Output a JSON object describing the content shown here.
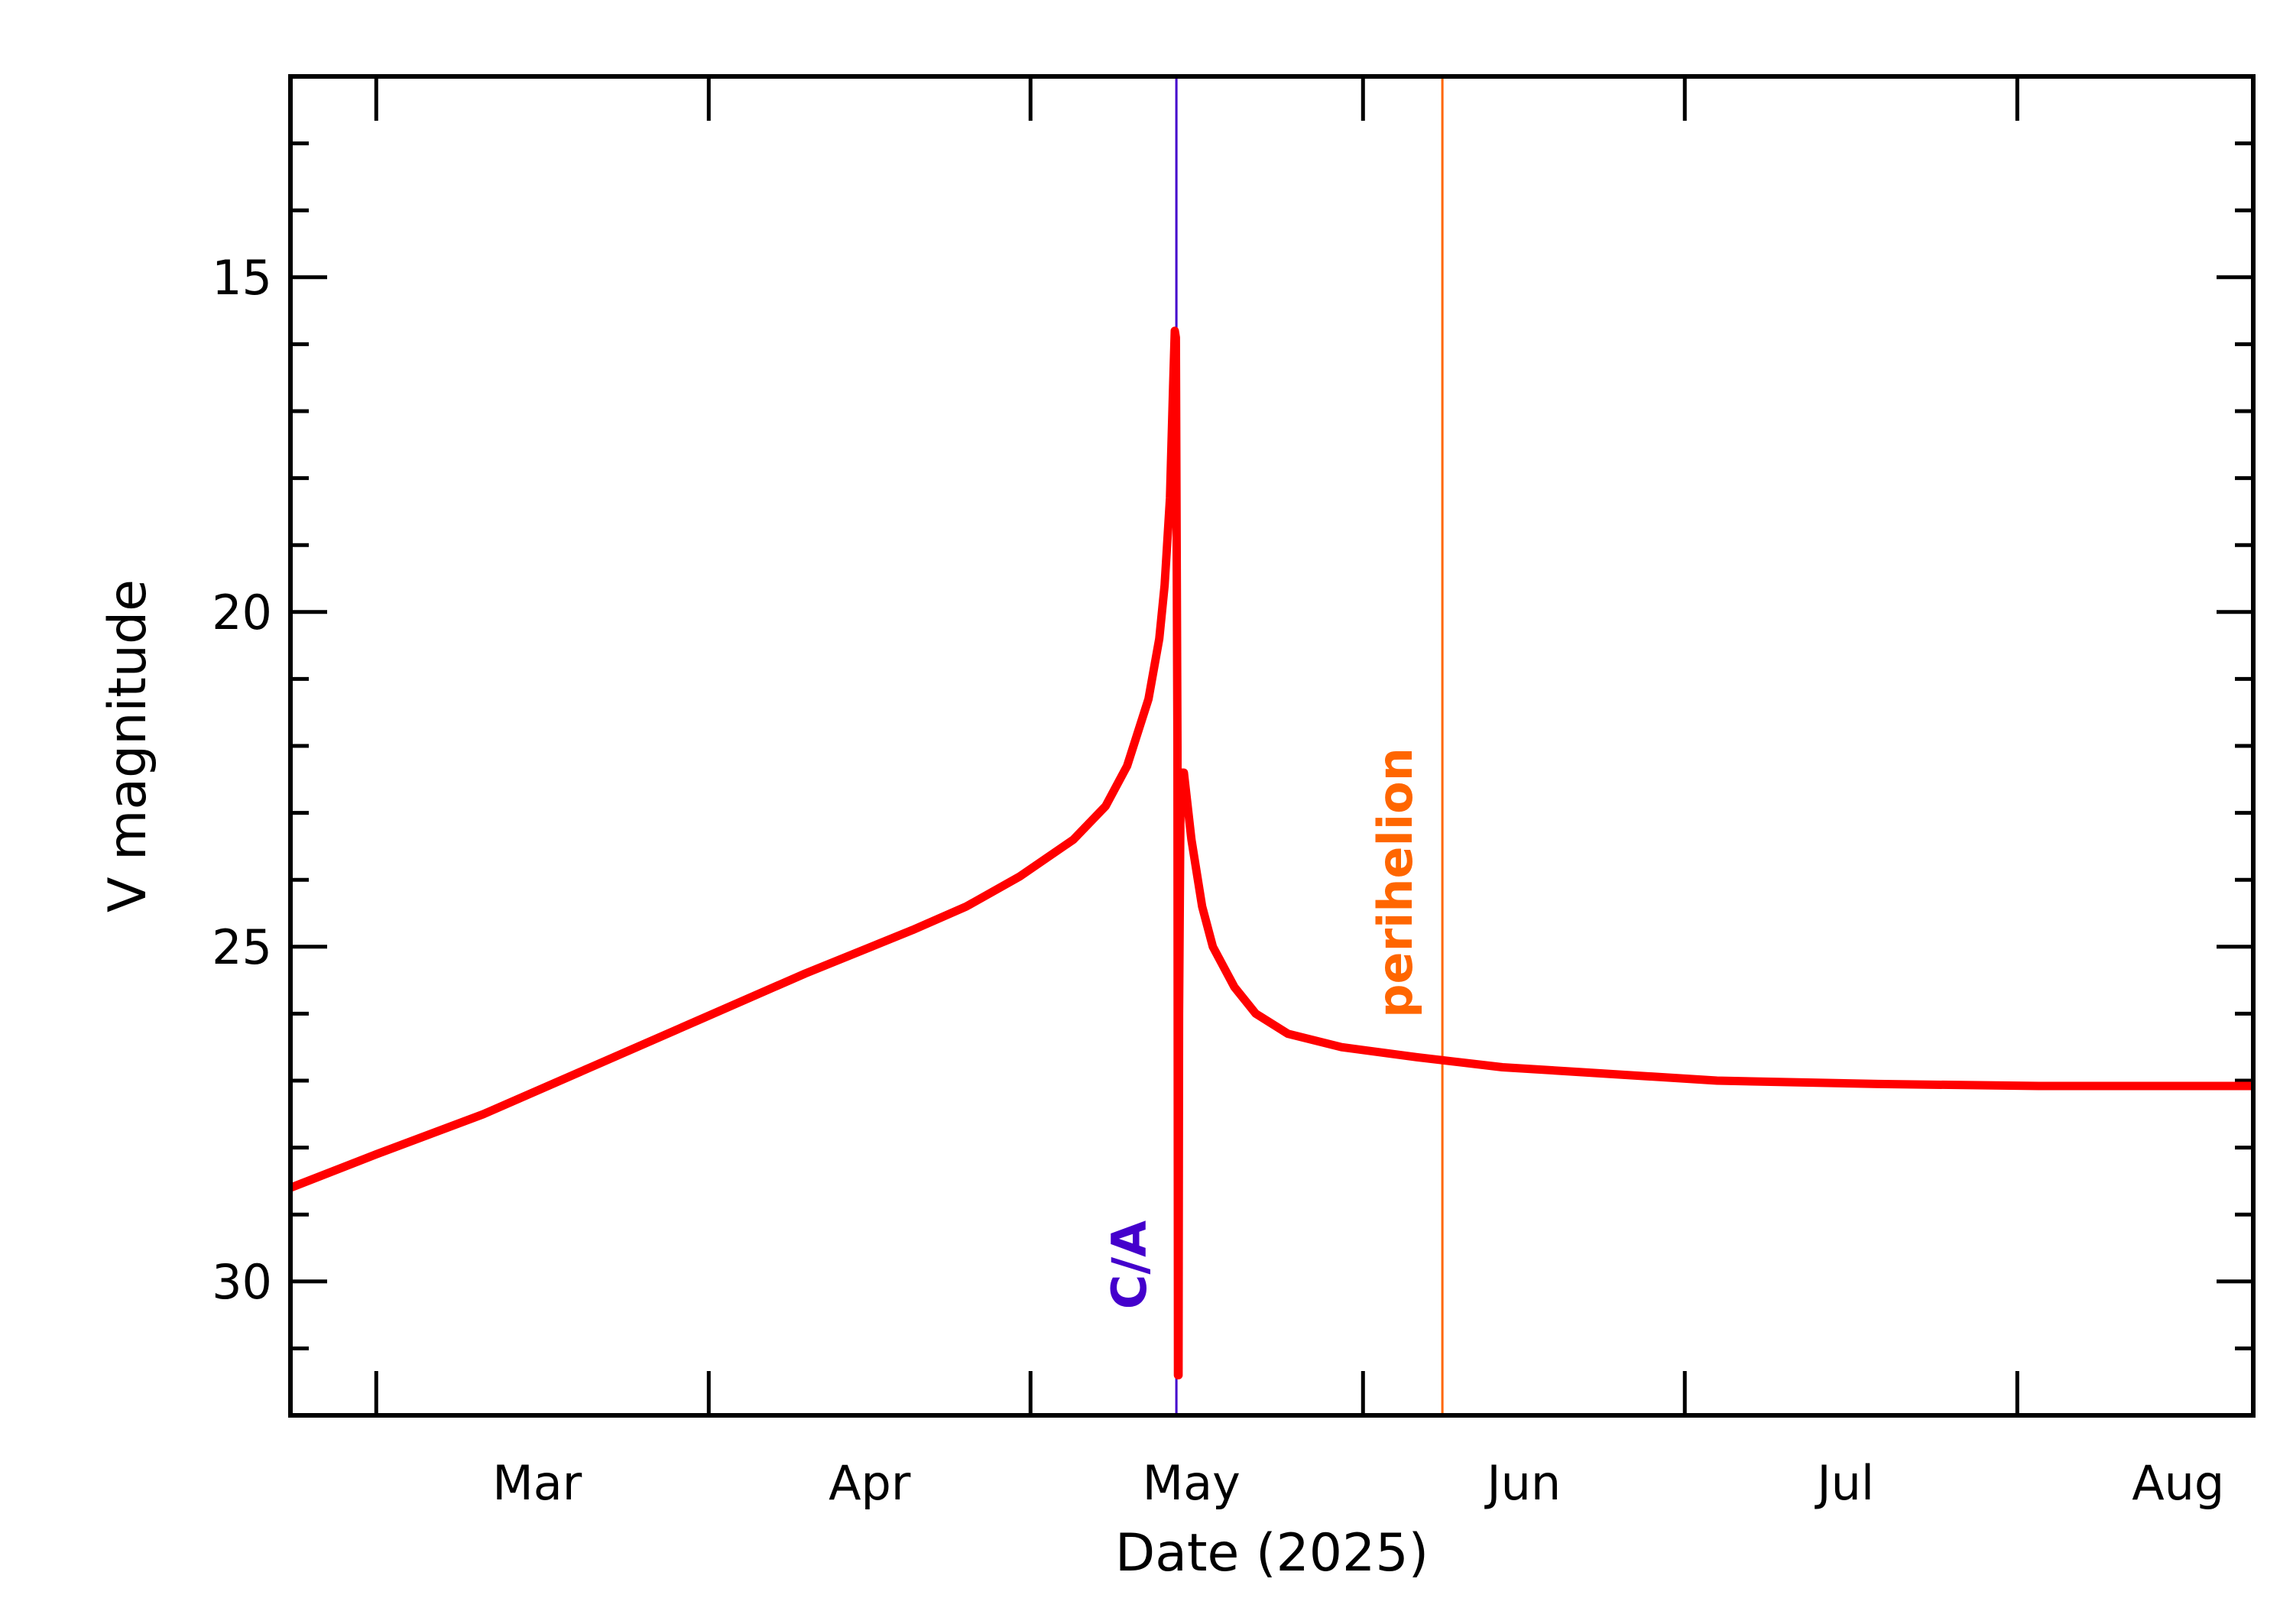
{
  "chart_data": {
    "type": "line",
    "title": "",
    "xlabel": "Date (2025)",
    "ylabel": "V magnitude",
    "y_inverted": true,
    "ylim": [
      12,
      32
    ],
    "xlim_day_of_year": [
      52,
      235
    ],
    "x_unit": "day of year 2025",
    "y_ticks": [
      {
        "value": 15,
        "label": "15"
      },
      {
        "value": 20,
        "label": "20"
      },
      {
        "value": 25,
        "label": "25"
      },
      {
        "value": 30,
        "label": "30"
      }
    ],
    "y_minor_step": 1,
    "month_ticks": [
      60,
      91,
      121,
      152,
      182,
      213
    ],
    "x_labels": [
      {
        "day": 75,
        "label": "Mar"
      },
      {
        "day": 106,
        "label": "Apr"
      },
      {
        "day": 136,
        "label": "May"
      },
      {
        "day": 167,
        "label": "Jun"
      },
      {
        "day": 197,
        "label": "Jul"
      },
      {
        "day": 228,
        "label": "Aug"
      }
    ],
    "series": [
      {
        "name": "V magnitude",
        "color": "#ff0000",
        "points": [
          [
            52,
            28.6
          ],
          [
            60,
            28.1
          ],
          [
            70,
            27.5
          ],
          [
            80,
            26.8
          ],
          [
            90,
            26.1
          ],
          [
            100,
            25.4
          ],
          [
            110,
            24.75
          ],
          [
            115,
            24.4
          ],
          [
            120,
            23.95
          ],
          [
            125,
            23.4
          ],
          [
            128,
            22.9
          ],
          [
            130,
            22.3
          ],
          [
            132,
            21.3
          ],
          [
            133,
            20.4
          ],
          [
            133.5,
            19.6
          ],
          [
            134,
            18.3
          ],
          [
            134.3,
            16.6
          ],
          [
            134.45,
            15.8
          ],
          [
            134.55,
            15.9
          ],
          [
            134.7,
            22.0
          ],
          [
            134.75,
            31.4
          ],
          [
            134.8,
            31.4
          ],
          [
            134.85,
            26.0
          ],
          [
            135,
            22.4
          ],
          [
            135.3,
            22.4
          ],
          [
            136,
            23.4
          ],
          [
            137,
            24.4
          ],
          [
            138,
            25.0
          ],
          [
            140,
            25.6
          ],
          [
            142,
            26.0
          ],
          [
            145,
            26.3
          ],
          [
            150,
            26.5
          ],
          [
            157,
            26.65
          ],
          [
            165,
            26.8
          ],
          [
            175,
            26.9
          ],
          [
            185,
            27.0
          ],
          [
            200,
            27.05
          ],
          [
            215,
            27.08
          ],
          [
            235,
            27.08
          ]
        ]
      }
    ],
    "events": [
      {
        "label": "C/A",
        "day": 134.6,
        "color": "#4400cc"
      },
      {
        "label": "perihelion",
        "day": 159.4,
        "color": "#ff6600"
      }
    ]
  }
}
